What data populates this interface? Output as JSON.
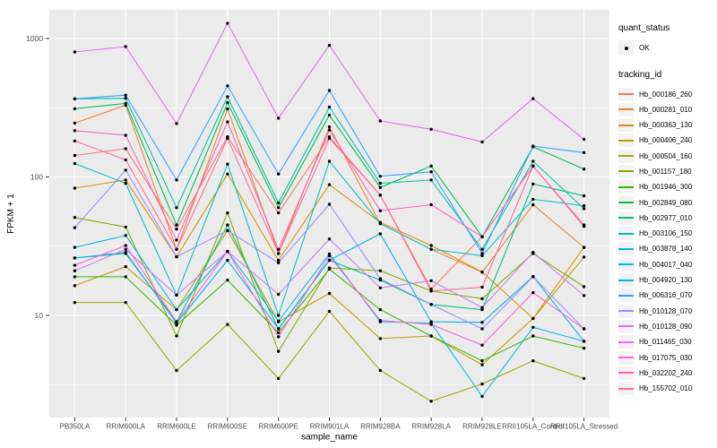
{
  "figure": {
    "background": "#FFFFFF",
    "panel_background": "#EBEBEB",
    "grid_color": "#FFFFFF",
    "tick_color": "#333333",
    "tick_label_color": "#4D4D4D",
    "axis_title_color": "#000000",
    "point_color": "#000000"
  },
  "chart_data": {
    "type": "line",
    "title": "",
    "xlabel": "sample_name",
    "ylabel": "FPKM + 1",
    "y_scale": "log10",
    "grid": true,
    "legend_position": "right",
    "y_tick_labels": [
      "10",
      "100",
      "1000"
    ],
    "y_tick_values": [
      10,
      100,
      1000
    ],
    "y_minor_values": [
      3.1623,
      31.623,
      316.23
    ],
    "ylim": [
      1.8,
      1620
    ],
    "categories": [
      "PB350LA",
      "RRIM600LA",
      "RRIM600LE",
      "RRIM600SE",
      "RRIM600PE",
      "RRIM901LA",
      "RRIM928BA",
      "RRIM928LA",
      "RRIM928LE",
      "RRII105LA_Control",
      "RRII105LA_Stressed"
    ],
    "legend": {
      "quant_title": "quant_status",
      "quant_items": [
        {
          "label": "OK",
          "symbol": "point",
          "color": "#000000"
        }
      ],
      "tracking_title": "tracking_id"
    },
    "series": [
      {
        "name": "Hb_000186_260",
        "color": "#F8766D",
        "values": [
          143,
          160,
          42,
          195,
          55,
          195,
          74,
          15.5,
          37,
          120,
          44
        ]
      },
      {
        "name": "Hb_000281_010",
        "color": "#EA8331",
        "values": [
          245,
          330,
          30,
          310,
          28,
          230,
          46,
          30,
          20.5,
          63,
          31
        ]
      },
      {
        "name": "Hb_000363_130",
        "color": "#D89000",
        "values": [
          83,
          95,
          26.5,
          105,
          25,
          88,
          47,
          32,
          20.6,
          9.5,
          31
        ]
      },
      {
        "name": "Hb_000406_240",
        "color": "#C09B00",
        "values": [
          16.4,
          22.5,
          11,
          41,
          9,
          14.4,
          6.8,
          7.1,
          4.4,
          9.5,
          26.4
        ]
      },
      {
        "name": "Hb_000504_160",
        "color": "#A3A500",
        "values": [
          12.4,
          12.4,
          4.0,
          8.6,
          3.5,
          10.7,
          4.0,
          2.4,
          3.2,
          4.7,
          3.5
        ]
      },
      {
        "name": "Hb_001157_180",
        "color": "#7CAE00",
        "values": [
          51,
          43.5,
          7.1,
          55,
          5.5,
          22,
          21,
          15,
          13.2,
          28,
          16.1
        ]
      },
      {
        "name": "Hb_001946_300",
        "color": "#39B600",
        "values": [
          19,
          19,
          8.5,
          18,
          7.5,
          21.6,
          11,
          7.1,
          4.7,
          7.1,
          5.8
        ]
      },
      {
        "name": "Hb_002849_080",
        "color": "#00BB4E",
        "values": [
          311,
          340,
          45,
          344,
          60,
          280,
          84,
          120,
          37,
          165,
          114
        ]
      },
      {
        "name": "Hb_002977_010",
        "color": "#00BF7D",
        "values": [
          26,
          28,
          9,
          45,
          8,
          25,
          18,
          12,
          11,
          89,
          73
        ]
      },
      {
        "name": "Hb_003106_150",
        "color": "#00C1A3",
        "values": [
          367,
          370,
          60,
          380,
          65,
          320,
          90,
          95,
          30,
          130,
          59
        ]
      },
      {
        "name": "Hb_003878_140",
        "color": "#00BFC4",
        "values": [
          125,
          90,
          14,
          124,
          10,
          130,
          46,
          30,
          27,
          69,
          62
        ]
      },
      {
        "name": "Hb_004017_040",
        "color": "#00BAE0",
        "values": [
          31,
          37.8,
          11,
          29,
          9.1,
          27.8,
          9,
          8.8,
          2.6,
          8.2,
          6.5
        ]
      },
      {
        "name": "Hb_004920_130",
        "color": "#00B0F6",
        "values": [
          26,
          28.5,
          8.8,
          25,
          8,
          25,
          38.8,
          9,
          8.9,
          19.1,
          6.5
        ]
      },
      {
        "name": "Hb_006316_070",
        "color": "#35A2FF",
        "values": [
          367,
          390,
          95,
          455,
          105,
          421,
          101,
          109,
          28,
          167,
          150
        ]
      },
      {
        "name": "Hb_010128_070",
        "color": "#9590FF",
        "values": [
          43,
          112,
          26.5,
          41,
          24,
          63.5,
          18.4,
          12,
          8,
          19,
          8
        ]
      },
      {
        "name": "Hb_010128_090",
        "color": "#C77CFF",
        "values": [
          21,
          30,
          14,
          29,
          14.2,
          35.6,
          15.8,
          17.8,
          11.4,
          28.5,
          13.9
        ]
      },
      {
        "name": "Hb_011465_030",
        "color": "#E76BF3",
        "values": [
          800,
          874,
          243,
          1290,
          266,
          893,
          254,
          221,
          179,
          368,
          187
        ]
      },
      {
        "name": "Hb_017075_030",
        "color": "#FA62DB",
        "values": [
          23,
          32,
          9,
          29,
          7,
          27,
          9.2,
          8.6,
          6.1,
          14.6,
          8
        ]
      },
      {
        "name": "Hb_032202_240",
        "color": "#FF62BC",
        "values": [
          216,
          200,
          35,
          250,
          30,
          218,
          57,
          63,
          37,
          120,
          45
        ]
      },
      {
        "name": "Hb_155702_010",
        "color": "#FF6A98",
        "values": [
          182,
          133,
          30,
          190,
          28,
          190,
          74,
          15,
          16,
          120,
          44
        ]
      }
    ]
  }
}
